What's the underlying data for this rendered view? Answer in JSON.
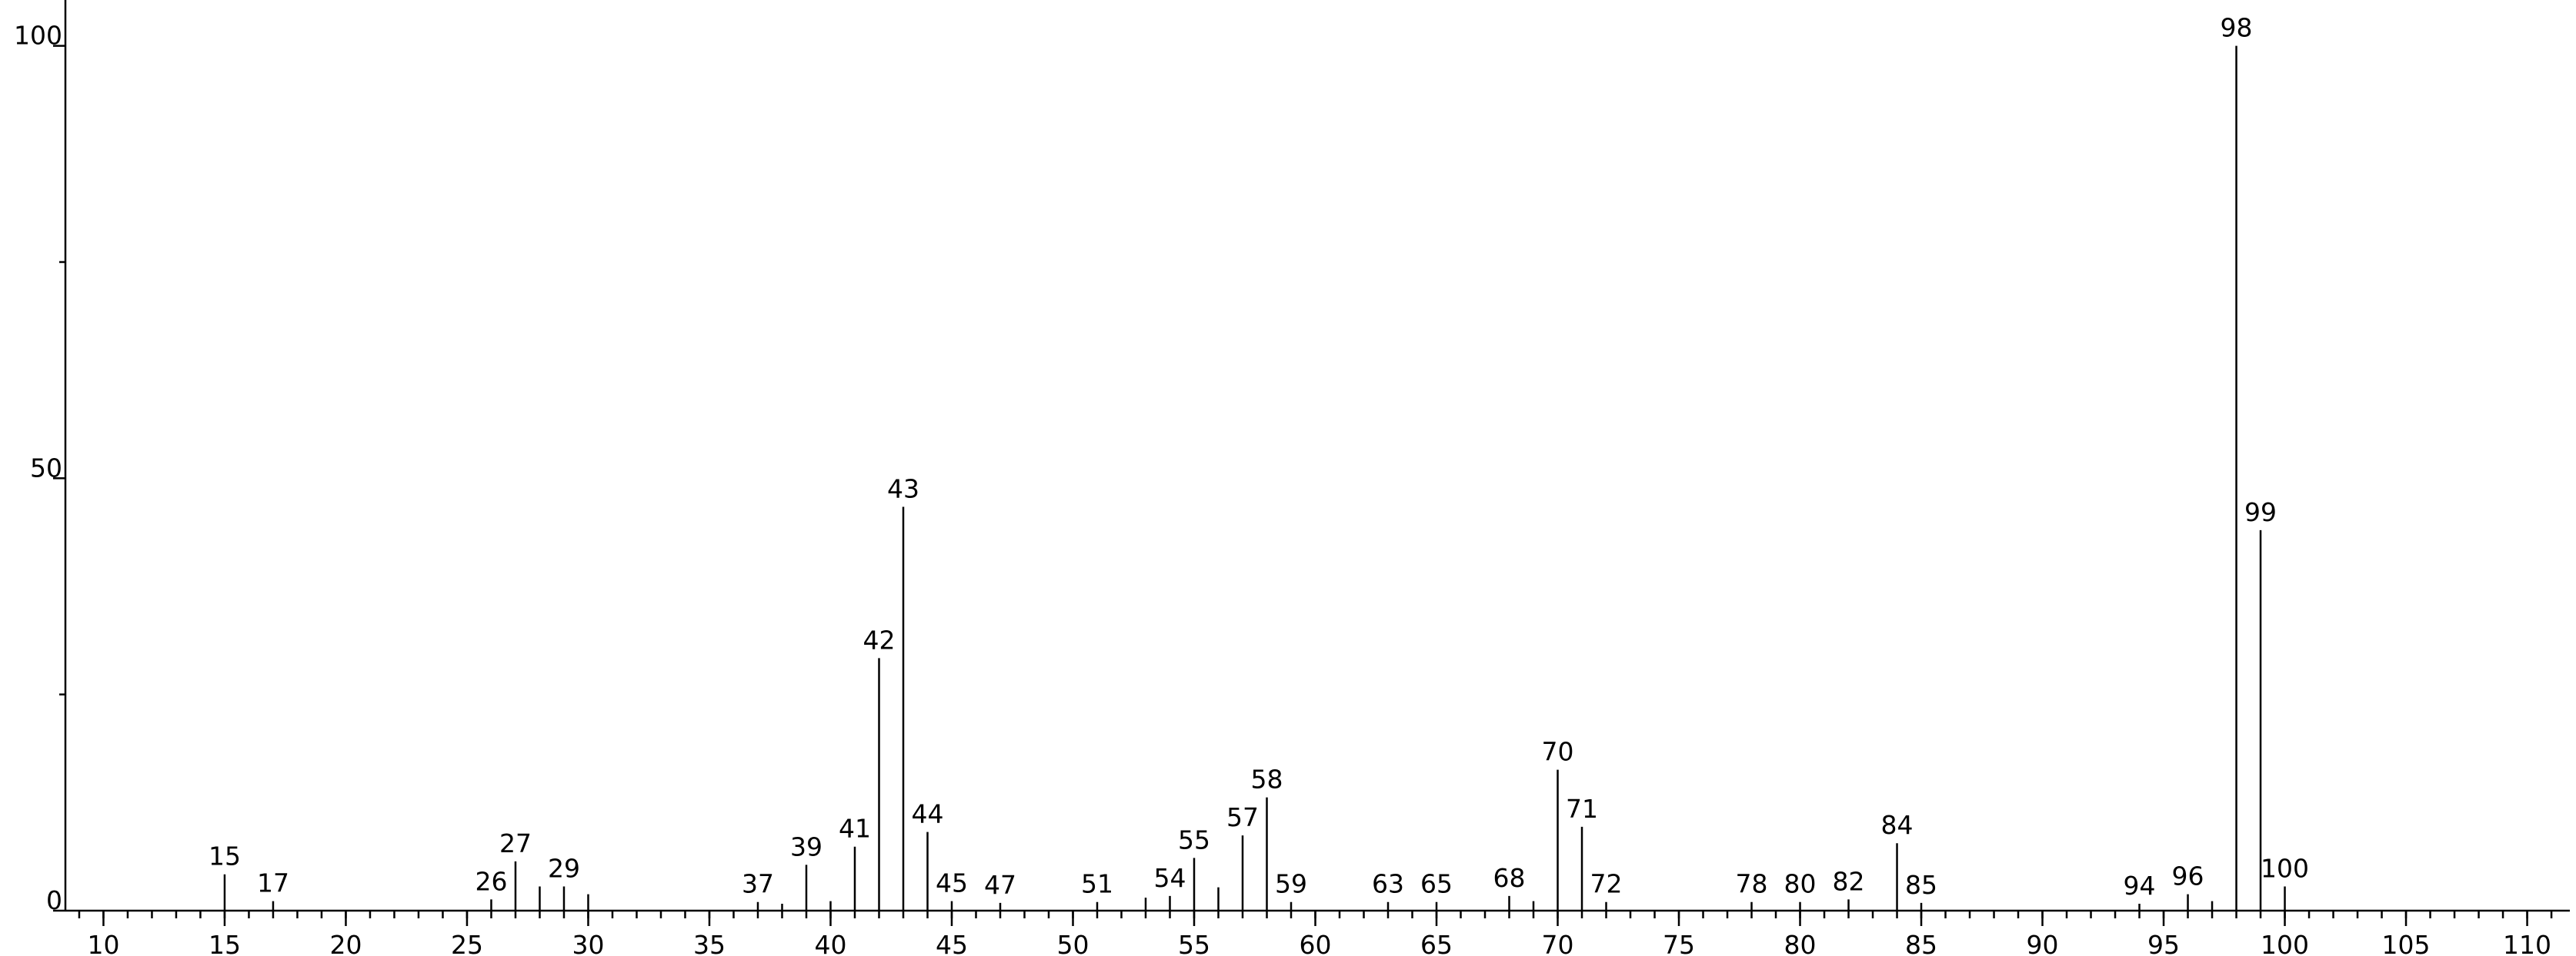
{
  "chart_data": {
    "type": "stem",
    "x": [
      15,
      17,
      26,
      27,
      28,
      29,
      30,
      37,
      38,
      39,
      40,
      41,
      42,
      43,
      44,
      45,
      47,
      51,
      53,
      54,
      55,
      56,
      57,
      58,
      59,
      63,
      65,
      68,
      69,
      70,
      71,
      72,
      78,
      80,
      82,
      84,
      85,
      94,
      96,
      97,
      98,
      99,
      100
    ],
    "values": [
      4.2,
      1.1,
      1.3,
      5.7,
      2.8,
      2.8,
      1.9,
      1.0,
      0.8,
      5.3,
      1.1,
      7.4,
      29.2,
      46.7,
      9.1,
      1.1,
      0.9,
      1.0,
      1.5,
      1.7,
      6.1,
      2.7,
      8.7,
      13.1,
      1.0,
      1.0,
      1.0,
      1.7,
      1.1,
      16.3,
      9.7,
      1.0,
      1.0,
      1.0,
      1.3,
      7.8,
      0.9,
      0.8,
      1.9,
      1.1,
      100,
      44,
      2.8
    ],
    "peak_labels": [
      15,
      17,
      26,
      27,
      null,
      29,
      null,
      37,
      null,
      39,
      null,
      41,
      42,
      43,
      44,
      45,
      47,
      51,
      null,
      54,
      55,
      null,
      57,
      58,
      59,
      63,
      65,
      68,
      null,
      70,
      71,
      72,
      78,
      80,
      82,
      84,
      85,
      94,
      96,
      null,
      98,
      99,
      100
    ],
    "color": "#000000",
    "xlim": [
      8.43,
      111.76
    ],
    "xticks": [
      10,
      15,
      20,
      25,
      30,
      35,
      40,
      45,
      50,
      55,
      60,
      65,
      70,
      75,
      80,
      85,
      90,
      95,
      100,
      105,
      110
    ],
    "x_minor_step": 1,
    "ylim": [
      0,
      105.3
    ],
    "yticks": [
      0,
      50,
      100
    ],
    "y_minor_ticks": [
      25,
      75
    ]
  }
}
